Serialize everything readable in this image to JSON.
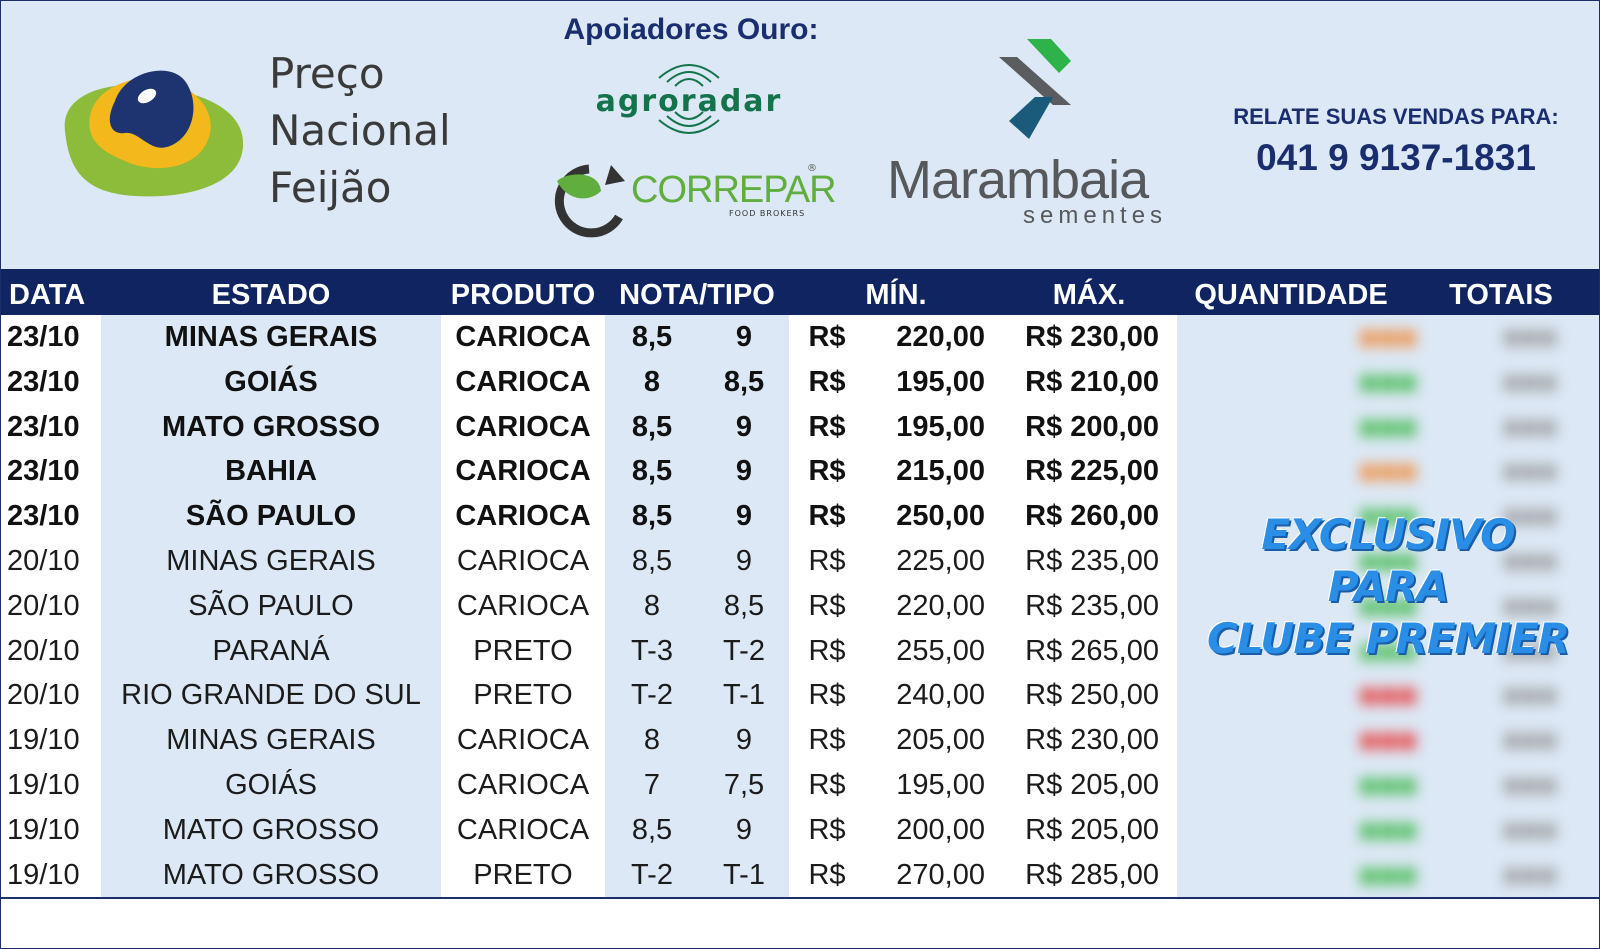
{
  "header": {
    "logo": {
      "line1": "Preço",
      "line2": "Nacional",
      "line3": "Feijão"
    },
    "sponsors_title": "Apoiadores Ouro:",
    "sponsor1": "agroradar",
    "sponsor2": "CORREPAR",
    "sponsor2_sub": "FOOD BROKERS",
    "sponsor2_reg": "®",
    "sponsor3_name": "Marambaia",
    "sponsor3_sub": "sementes",
    "contact_label": "RELATE SUAS VENDAS PARA:",
    "contact_phone": "041 9 9137-1831"
  },
  "table": {
    "columns": {
      "data": "DATA",
      "estado": "ESTADO",
      "produto": "PRODUTO",
      "nota": "NOTA/TIPO",
      "min": "MÍN.",
      "max": "MÁX.",
      "quantidade": "QUANTIDADE",
      "totais": "TOTAIS"
    },
    "rows": [
      {
        "data": "23/10",
        "estado": "MINAS GERAIS",
        "produto": "CARIOCA",
        "nota1": "8,5",
        "nota2": "9",
        "cur": "R$",
        "min": "220,00",
        "max": "R$ 230,00"
      },
      {
        "data": "23/10",
        "estado": "GOIÁS",
        "produto": "CARIOCA",
        "nota1": "8",
        "nota2": "8,5",
        "cur": "R$",
        "min": "195,00",
        "max": "R$ 210,00"
      },
      {
        "data": "23/10",
        "estado": "MATO GROSSO",
        "produto": "CARIOCA",
        "nota1": "8,5",
        "nota2": "9",
        "cur": "R$",
        "min": "195,00",
        "max": "R$ 200,00"
      },
      {
        "data": "23/10",
        "estado": "BAHIA",
        "produto": "CARIOCA",
        "nota1": "8,5",
        "nota2": "9",
        "cur": "R$",
        "min": "215,00",
        "max": "R$ 225,00"
      },
      {
        "data": "23/10",
        "estado": "SÃO PAULO",
        "produto": "CARIOCA",
        "nota1": "8,5",
        "nota2": "9",
        "cur": "R$",
        "min": "250,00",
        "max": "R$ 260,00"
      },
      {
        "data": "20/10",
        "estado": "MINAS GERAIS",
        "produto": "CARIOCA",
        "nota1": "8,5",
        "nota2": "9",
        "cur": "R$",
        "min": "225,00",
        "max": "R$ 235,00"
      },
      {
        "data": "20/10",
        "estado": "SÃO PAULO",
        "produto": "CARIOCA",
        "nota1": "8",
        "nota2": "8,5",
        "cur": "R$",
        "min": "220,00",
        "max": "R$ 235,00"
      },
      {
        "data": "20/10",
        "estado": "PARANÁ",
        "produto": "PRETO",
        "nota1": "T-3",
        "nota2": "T-2",
        "cur": "R$",
        "min": "255,00",
        "max": "R$ 265,00"
      },
      {
        "data": "20/10",
        "estado": "RIO GRANDE DO SUL",
        "produto": "PRETO",
        "nota1": "T-2",
        "nota2": "T-1",
        "cur": "R$",
        "min": "240,00",
        "max": "R$ 250,00"
      },
      {
        "data": "19/10",
        "estado": "MINAS GERAIS",
        "produto": "CARIOCA",
        "nota1": "8",
        "nota2": "9",
        "cur": "R$",
        "min": "205,00",
        "max": "R$ 230,00"
      },
      {
        "data": "19/10",
        "estado": "GOIÁS",
        "produto": "CARIOCA",
        "nota1": "7",
        "nota2": "7,5",
        "cur": "R$",
        "min": "195,00",
        "max": "R$ 205,00"
      },
      {
        "data": "19/10",
        "estado": "MATO GROSSO",
        "produto": "CARIOCA",
        "nota1": "8,5",
        "nota2": "9",
        "cur": "R$",
        "min": "200,00",
        "max": "R$ 205,00"
      },
      {
        "data": "19/10",
        "estado": "MATO GROSSO",
        "produto": "PRETO",
        "nota1": "T-2",
        "nota2": "T-1",
        "cur": "R$",
        "min": "270,00",
        "max": "R$ 285,00"
      }
    ],
    "bold_rows": 5,
    "premium_overlay": {
      "line1": "EXCLUSIVO",
      "line2": "PARA",
      "line3": "CLUBE PREMIER"
    },
    "blurred_colors": [
      "#f08a3a",
      "#3cb84a",
      "#3cb84a",
      "#f08a3a",
      "#3cb84a",
      "#3cb84a",
      "#3cb84a",
      "#3cb84a",
      "#e83a3a",
      "#e83a3a",
      "#3cb84a",
      "#3cb84a",
      "#3cb84a"
    ]
  }
}
